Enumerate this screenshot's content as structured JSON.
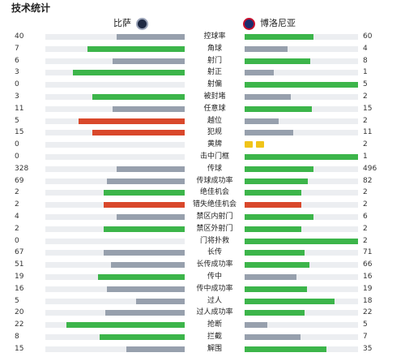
{
  "title": "技术统计",
  "home_team": "比萨",
  "away_team": "博洛尼亚",
  "colors": {
    "green": "#3cb54a",
    "gray": "#97a0ad",
    "red": "#d9482b",
    "track": "#eceef1",
    "card_yellow": "#f0c419"
  },
  "stats": [
    {
      "label": "控球率",
      "home": "40",
      "away": "60",
      "home_frac": 0.49,
      "away_frac": 0.61,
      "home_color": "gray",
      "away_color": "green"
    },
    {
      "label": "角球",
      "home": "7",
      "away": "4",
      "home_frac": 0.7,
      "away_frac": 0.38,
      "home_color": "green",
      "away_color": "gray"
    },
    {
      "label": "射门",
      "home": "6",
      "away": "8",
      "home_frac": 0.52,
      "away_frac": 0.58,
      "home_color": "gray",
      "away_color": "green"
    },
    {
      "label": "射正",
      "home": "3",
      "away": "1",
      "home_frac": 0.8,
      "away_frac": 0.26,
      "home_color": "green",
      "away_color": "gray"
    },
    {
      "label": "射偏",
      "home": "0",
      "away": "5",
      "home_frac": 0.0,
      "away_frac": 1.0,
      "home_color": "gray",
      "away_color": "green"
    },
    {
      "label": "被封堵",
      "home": "3",
      "away": "2",
      "home_frac": 0.66,
      "away_frac": 0.41,
      "home_color": "green",
      "away_color": "gray"
    },
    {
      "label": "任意球",
      "home": "11",
      "away": "15",
      "home_frac": 0.52,
      "away_frac": 0.59,
      "home_color": "gray",
      "away_color": "green"
    },
    {
      "label": "越位",
      "home": "5",
      "away": "2",
      "home_frac": 0.76,
      "away_frac": 0.3,
      "home_color": "red",
      "away_color": "gray"
    },
    {
      "label": "犯规",
      "home": "15",
      "away": "11",
      "home_frac": 0.66,
      "away_frac": 0.43,
      "home_color": "red",
      "away_color": "gray"
    },
    {
      "label": "黄牌",
      "home": "0",
      "away": "2",
      "home_frac": 0.0,
      "away_frac": 0.0,
      "home_color": "gray",
      "away_color": "gray",
      "away_cards": 2
    },
    {
      "label": "击中门框",
      "home": "0",
      "away": "1",
      "home_frac": 0.0,
      "away_frac": 1.0,
      "home_color": "gray",
      "away_color": "green"
    },
    {
      "label": "传球",
      "home": "328",
      "away": "496",
      "home_frac": 0.49,
      "away_frac": 0.61,
      "home_color": "gray",
      "away_color": "green"
    },
    {
      "label": "传球成功率",
      "home": "69",
      "away": "82",
      "home_frac": 0.56,
      "away_frac": 0.56,
      "home_color": "gray",
      "away_color": "green"
    },
    {
      "label": "绝佳机会",
      "home": "2",
      "away": "2",
      "home_frac": 0.58,
      "away_frac": 0.5,
      "home_color": "green",
      "away_color": "green"
    },
    {
      "label": "错失绝佳机会",
      "home": "2",
      "away": "2",
      "home_frac": 0.58,
      "away_frac": 0.5,
      "home_color": "red",
      "away_color": "red"
    },
    {
      "label": "禁区内射门",
      "home": "4",
      "away": "6",
      "home_frac": 0.49,
      "away_frac": 0.61,
      "home_color": "gray",
      "away_color": "green"
    },
    {
      "label": "禁区外射门",
      "home": "2",
      "away": "2",
      "home_frac": 0.58,
      "away_frac": 0.5,
      "home_color": "green",
      "away_color": "green"
    },
    {
      "label": "门将扑救",
      "home": "0",
      "away": "2",
      "home_frac": 0.0,
      "away_frac": 1.0,
      "home_color": "gray",
      "away_color": "green"
    },
    {
      "label": "长传",
      "home": "67",
      "away": "71",
      "home_frac": 0.58,
      "away_frac": 0.53,
      "home_color": "gray",
      "away_color": "green"
    },
    {
      "label": "长传成功率",
      "home": "51",
      "away": "66",
      "home_frac": 0.53,
      "away_frac": 0.57,
      "home_color": "gray",
      "away_color": "green"
    },
    {
      "label": "传中",
      "home": "19",
      "away": "16",
      "home_frac": 0.62,
      "away_frac": 0.46,
      "home_color": "green",
      "away_color": "gray"
    },
    {
      "label": "传中成功率",
      "home": "16",
      "away": "19",
      "home_frac": 0.56,
      "away_frac": 0.55,
      "home_color": "gray",
      "away_color": "green"
    },
    {
      "label": "过人",
      "home": "5",
      "away": "18",
      "home_frac": 0.35,
      "away_frac": 0.79,
      "home_color": "gray",
      "away_color": "green"
    },
    {
      "label": "过人成功率",
      "home": "20",
      "away": "22",
      "home_frac": 0.57,
      "away_frac": 0.53,
      "home_color": "gray",
      "away_color": "green"
    },
    {
      "label": "抢断",
      "home": "22",
      "away": "5",
      "home_frac": 0.85,
      "away_frac": 0.2,
      "home_color": "green",
      "away_color": "gray"
    },
    {
      "label": "拦截",
      "home": "8",
      "away": "7",
      "home_frac": 0.61,
      "away_frac": 0.49,
      "home_color": "green",
      "away_color": "gray"
    },
    {
      "label": "解围",
      "home": "15",
      "away": "35",
      "home_frac": 0.42,
      "away_frac": 0.72,
      "home_color": "gray",
      "away_color": "green"
    }
  ]
}
